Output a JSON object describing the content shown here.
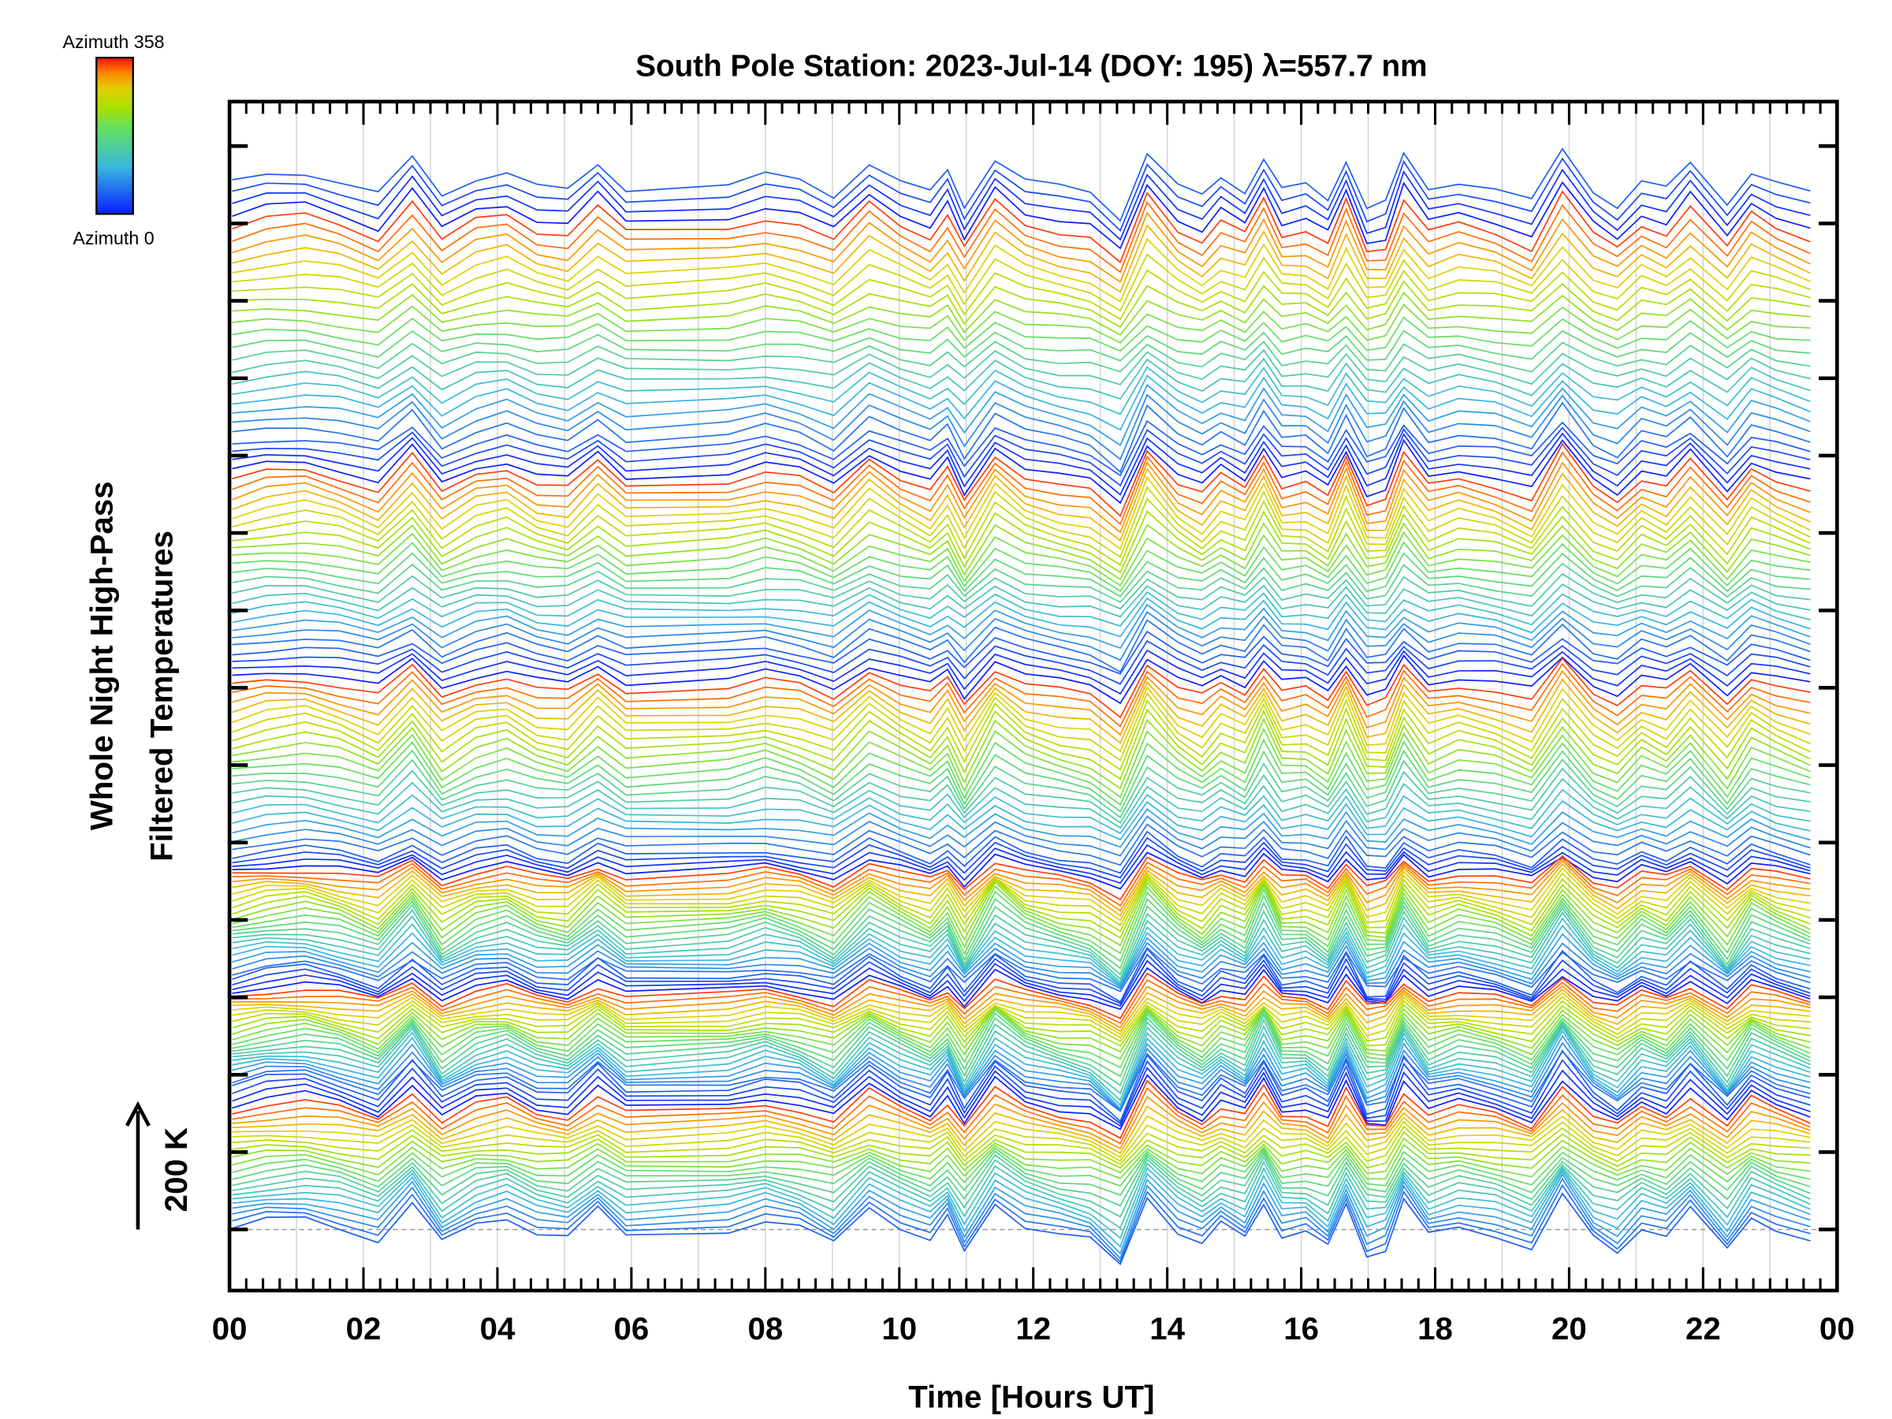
{
  "chart_data": {
    "type": "line",
    "title": "South Pole Station: 2023-Jul-14 (DOY: 195) λ=557.7 nm",
    "xlabel": "Time [Hours UT]",
    "ylabel_line1": "Whole Night High-Pass",
    "ylabel_line2": "Filtered Temperatures",
    "scale_label": "200 K",
    "scale_value_K": 200,
    "colorbar": {
      "top_label": "Azimuth 358",
      "bottom_label": "Azimuth 0",
      "min": 0,
      "max": 358
    },
    "xlim": [
      0,
      24
    ],
    "xtick_labels": [
      "00",
      "02",
      "04",
      "06",
      "08",
      "10",
      "12",
      "14",
      "16",
      "18",
      "20",
      "22",
      "00"
    ],
    "grid": true,
    "times_h": [
      0.04,
      0.55,
      1.13,
      1.64,
      2.22,
      2.73,
      3.17,
      3.68,
      4.14,
      4.59,
      5.05,
      5.5,
      5.92,
      7.45,
      8.0,
      8.51,
      9.02,
      9.55,
      10.02,
      10.46,
      10.72,
      10.97,
      11.43,
      11.88,
      12.39,
      12.85,
      13.3,
      13.7,
      14.16,
      14.52,
      14.8,
      15.16,
      15.44,
      15.71,
      16.07,
      16.4,
      16.67,
      16.98,
      17.26,
      17.53,
      17.9,
      18.35,
      18.9,
      19.44,
      19.9,
      20.36,
      20.72,
      21.08,
      21.45,
      21.81,
      22.36,
      22.72,
      23.09,
      23.6
    ],
    "common_anomaly_K": [
      0,
      10,
      14,
      4,
      -14,
      34,
      -18,
      8,
      16,
      -4,
      -10,
      24,
      -6,
      0,
      12,
      2,
      -18,
      28,
      4,
      -12,
      14,
      -30,
      36,
      6,
      -6,
      -14,
      -44,
      40,
      -2,
      -18,
      6,
      -10,
      38,
      -8,
      -4,
      -22,
      30,
      -28,
      -24,
      36,
      -8,
      4,
      -6,
      -24,
      40,
      -10,
      -26,
      4,
      -8,
      26,
      -28,
      18,
      2,
      -14
    ],
    "azimuth_order": [
      45,
      30,
      15,
      0,
      345,
      330,
      315,
      300,
      285,
      270,
      255,
      240,
      225,
      210,
      195,
      180,
      165,
      150,
      135,
      120,
      105,
      90,
      75,
      60
    ],
    "band_offsets_K": [
      {
        "top": 1714,
        "bottom": 1284
      },
      {
        "top": 1284,
        "bottom": 944
      },
      {
        "top": 944,
        "bottom": 614
      },
      {
        "top": 614,
        "bottom": 414
      },
      {
        "top": 414,
        "bottom": 234
      },
      {
        "top": 234,
        "bottom": 0
      }
    ]
  }
}
